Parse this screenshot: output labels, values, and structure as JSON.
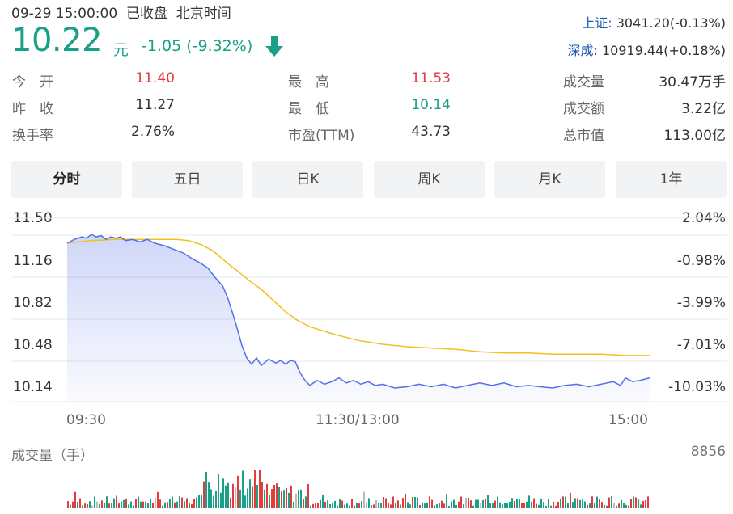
{
  "header": {
    "datetime": "09-29 15:00:00",
    "status": "已收盘",
    "timezone": "北京时间",
    "price": "10.22",
    "price_unit": "元",
    "change": "-1.05 (-9.32%)",
    "trend_icon": "down-arrow-icon",
    "sh_label": "上证:",
    "sh_value": "3041.20(-0.13%)",
    "sz_label": "深成:",
    "sz_value": "10919.44(+0.18%)"
  },
  "stats": {
    "open_label": "今　开",
    "open_value": "11.40",
    "prev_label": "昨　收",
    "prev_value": "11.27",
    "turnover_label": "换手率",
    "turnover_value": "2.76%",
    "high_label": "最　高",
    "high_value": "11.53",
    "low_label": "最　低",
    "low_value": "10.14",
    "pe_label": "市盈(TTM)",
    "pe_value": "43.73",
    "volume_label": "成交量",
    "volume_value": "30.47万手",
    "amount_label": "成交额",
    "amount_value": "3.22亿",
    "mcap_label": "总市值",
    "mcap_value": "113.00亿"
  },
  "tabs": [
    "分时",
    "五日",
    "日K",
    "周K",
    "月K",
    "1年"
  ],
  "active_tab": "分时",
  "colors": {
    "up": "#e43b3b",
    "down": "#1aa086",
    "price_line": "#5470e6",
    "avg_line": "#f0c020",
    "index_link": "#1d5bb0"
  },
  "volume_panel": {
    "title": "成交量（手）",
    "max_label": "8856"
  },
  "chart_data": {
    "type": "line",
    "y_ticks": [
      "11.50",
      "11.16",
      "10.82",
      "10.48",
      "10.14"
    ],
    "y_pct_ticks": [
      "2.04%",
      "-0.98%",
      "-3.99%",
      "-7.01%",
      "-10.03%"
    ],
    "ylim": [
      10.14,
      11.5
    ],
    "x_ticks": [
      "09:30",
      "11:30/13:00",
      "15:00"
    ],
    "x_range": [
      0,
      240
    ],
    "series": [
      {
        "name": "price",
        "x": [
          0,
          3,
          6,
          8,
          10,
          12,
          14,
          16,
          18,
          20,
          22,
          24,
          27,
          30,
          33,
          36,
          40,
          44,
          48,
          52,
          55,
          58,
          60,
          62,
          64,
          66,
          68,
          70,
          72,
          74,
          76,
          78,
          80,
          83,
          86,
          88,
          90,
          92,
          94,
          96,
          98,
          100,
          103,
          106,
          109,
          112,
          115,
          118,
          121,
          124,
          127,
          130,
          135,
          140,
          145,
          150,
          155,
          160,
          165,
          170,
          175,
          180,
          185,
          190,
          195,
          200,
          205,
          210,
          215,
          220,
          225,
          228,
          230,
          233,
          236,
          240
        ],
        "y": [
          11.3,
          11.33,
          11.35,
          11.34,
          11.37,
          11.35,
          11.36,
          11.33,
          11.35,
          11.34,
          11.35,
          11.32,
          11.33,
          11.31,
          11.33,
          11.3,
          11.28,
          11.25,
          11.22,
          11.17,
          11.14,
          11.1,
          11.05,
          11.0,
          10.96,
          10.87,
          10.75,
          10.62,
          10.48,
          10.38,
          10.33,
          10.38,
          10.32,
          10.37,
          10.34,
          10.36,
          10.33,
          10.36,
          10.35,
          10.26,
          10.2,
          10.16,
          10.2,
          10.17,
          10.19,
          10.22,
          10.18,
          10.2,
          10.17,
          10.19,
          10.16,
          10.17,
          10.14,
          10.15,
          10.17,
          10.15,
          10.17,
          10.14,
          10.16,
          10.18,
          10.16,
          10.18,
          10.15,
          10.16,
          10.15,
          10.14,
          10.16,
          10.17,
          10.15,
          10.17,
          10.19,
          10.16,
          10.22,
          10.19,
          10.2,
          10.22
        ]
      },
      {
        "name": "avg",
        "x": [
          0,
          10,
          20,
          30,
          40,
          45,
          50,
          55,
          60,
          63,
          66,
          70,
          75,
          80,
          85,
          90,
          95,
          100,
          110,
          120,
          130,
          140,
          150,
          160,
          170,
          180,
          190,
          200,
          210,
          220,
          230,
          240
        ],
        "y": [
          11.3,
          11.32,
          11.33,
          11.33,
          11.33,
          11.33,
          11.32,
          11.29,
          11.24,
          11.19,
          11.14,
          11.08,
          11.0,
          10.93,
          10.84,
          10.75,
          10.68,
          10.63,
          10.57,
          10.52,
          10.49,
          10.47,
          10.46,
          10.45,
          10.43,
          10.42,
          10.42,
          10.41,
          10.41,
          10.41,
          10.4,
          10.4
        ]
      }
    ]
  }
}
